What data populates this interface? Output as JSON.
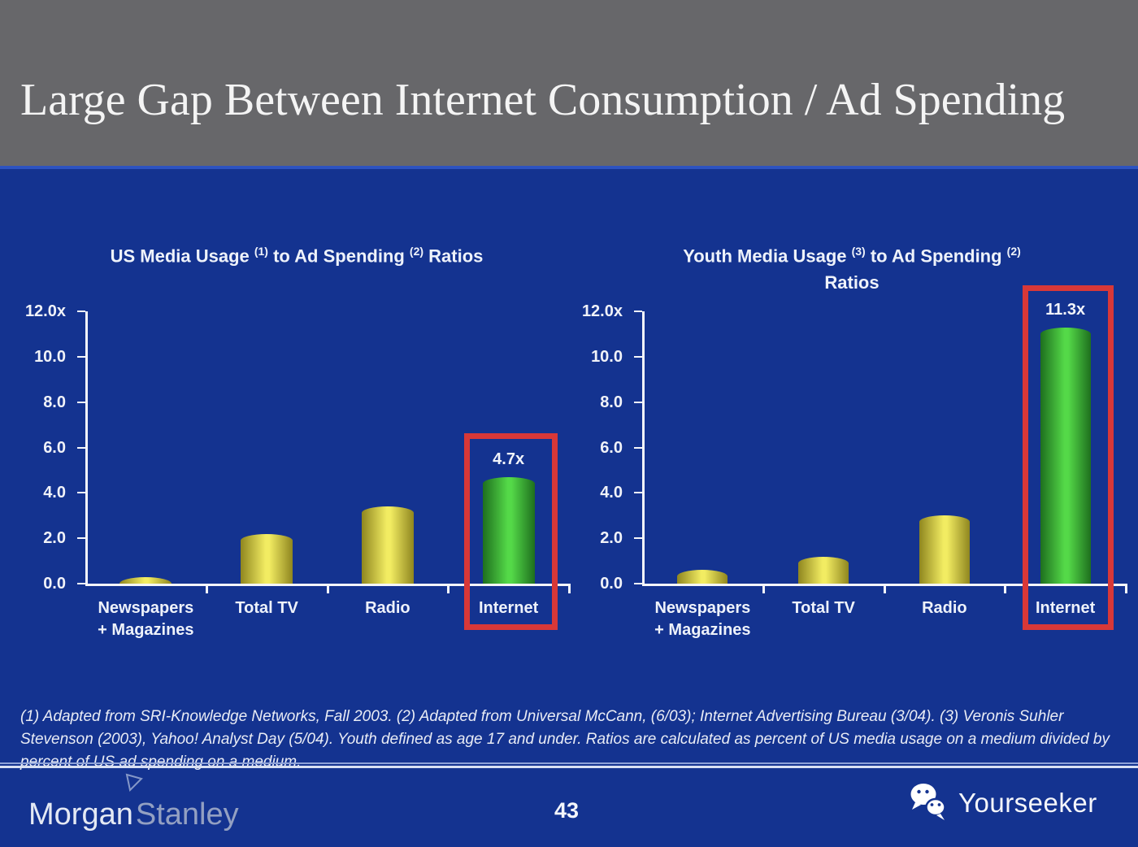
{
  "header": {
    "title": "Large Gap Between Internet Consumption / Ad Spending"
  },
  "chart_data": [
    {
      "type": "bar",
      "title_segments": [
        {
          "text": "US Media Usage "
        },
        {
          "text": "(1)",
          "sup": true
        },
        {
          "text": " to Ad Spending "
        },
        {
          "text": "(2)",
          "sup": true
        },
        {
          "text": " Ratios"
        }
      ],
      "title_line2": null,
      "categories": [
        [
          "Newspapers",
          "+ Magazines"
        ],
        [
          "Total TV"
        ],
        [
          "Radio"
        ],
        [
          "Internet"
        ]
      ],
      "values": [
        0.3,
        2.2,
        3.4,
        4.7
      ],
      "bar_styles": [
        "yellow",
        "yellow",
        "yellow",
        "green"
      ],
      "data_labels": [
        null,
        null,
        null,
        "4.7x"
      ],
      "highlight_index": 3,
      "ylim": [
        0,
        12
      ],
      "yticks": {
        "values": [
          12,
          10,
          8,
          6,
          4,
          2,
          0
        ],
        "labels": [
          "12.0x",
          "10.0",
          "8.0",
          "6.0",
          "4.0",
          "2.0",
          "0.0"
        ]
      },
      "grid": false,
      "legend": null
    },
    {
      "type": "bar",
      "title_segments": [
        {
          "text": "Youth Media Usage "
        },
        {
          "text": "(3)",
          "sup": true
        },
        {
          "text": " to Ad Spending "
        },
        {
          "text": "(2)",
          "sup": true
        }
      ],
      "title_line2": "Ratios",
      "categories": [
        [
          "Newspapers",
          "+ Magazines"
        ],
        [
          "Total TV"
        ],
        [
          "Radio"
        ],
        [
          "Internet"
        ]
      ],
      "values": [
        0.6,
        1.2,
        3.0,
        11.3
      ],
      "bar_styles": [
        "yellow",
        "yellow",
        "yellow",
        "green"
      ],
      "data_labels": [
        null,
        null,
        null,
        "11.3x"
      ],
      "highlight_index": 3,
      "ylim": [
        0,
        12
      ],
      "yticks": {
        "values": [
          12,
          10,
          8,
          6,
          4,
          2,
          0
        ],
        "labels": [
          "12.0x",
          "10.0",
          "8.0",
          "6.0",
          "4.0",
          "2.0",
          "0.0"
        ]
      },
      "grid": false,
      "legend": null
    }
  ],
  "footnote": {
    "text": "(1) Adapted from SRI-Knowledge Networks, Fall 2003.  (2) Adapted from Universal McCann, (6/03); Internet Advertising Bureau (3/04). (3) Veronis Suhler Stevenson (2003), Yahoo! Analyst Day (5/04).  Youth defined as age 17 and under.  Ratios are calculated as percent of US media usage on a medium divided by percent of US ad spending on a medium."
  },
  "footer": {
    "brand": {
      "part1": "Morgan",
      "part2": "Stanley"
    },
    "page_number": "43",
    "partner": "Yourseeker"
  },
  "colors": {
    "header_gray": "#67676a",
    "background_blue": "#143390",
    "bar_yellow_mid": "#f2ec62",
    "bar_yellow_edge": "#8f861f",
    "bar_green_mid": "#54d948",
    "bar_green_edge": "#1e6f1e",
    "highlight_red": "#d83838",
    "axis_white": "#f5f6fa"
  }
}
